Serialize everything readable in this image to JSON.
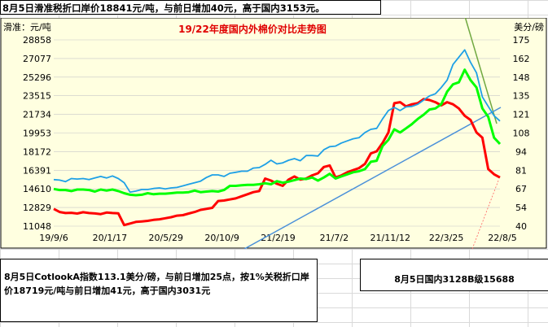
{
  "notes": {
    "top": "8月5日滑准税折口岸价18841元/吨，与前日增加40元，高于国内3153元。",
    "bottom": "8月5日CotlookA指数113.1美分/磅，与前日增加25点，按1%关税折口岸价18719元/吨与前日增加41元，高于国内3031元",
    "right": "8月5日国内3128B级15688"
  },
  "chart_data": {
    "type": "line",
    "title": "19/22年度国内外棉价对比走势图",
    "ylabel_left": "滑准：元/吨",
    "ylabel_right": "美分/磅",
    "x_ticks": [
      "19/9/6",
      "20/1/17",
      "20/5/29",
      "20/10/9",
      "21/2/19",
      "21/7/2",
      "21/11/12",
      "22/3/25",
      "22/8/5"
    ],
    "y_left_ticks": [
      11048,
      12829,
      14610,
      16391,
      18172,
      19953,
      21734,
      23515,
      25296,
      27077,
      28858
    ],
    "y_right_ticks": [
      40,
      54,
      67,
      81,
      94,
      108,
      121,
      135,
      148,
      162,
      175
    ],
    "ylim_left": [
      11048,
      28858
    ],
    "ylim_right": [
      40,
      175
    ],
    "colors": {
      "red": "#ff0000",
      "green": "#00ff00",
      "blue": "#1ea0e6",
      "trend_blue": "#4a90d9",
      "trend_green": "#70a840",
      "trend_red": "#ff6060"
    },
    "series": [
      {
        "color": "red",
        "values": [
          12700,
          12400,
          12300,
          12320,
          12250,
          12380,
          12300,
          12260,
          12200,
          12350,
          12300,
          12270,
          11150,
          11300,
          11450,
          11500,
          11550,
          11650,
          11700,
          11800,
          11900,
          12050,
          12100,
          12250,
          12400,
          12600,
          12700,
          12800,
          13450,
          13500,
          13600,
          13700,
          13900,
          14100,
          14300,
          14400,
          15600,
          15400,
          15100,
          14900,
          15500,
          15800,
          15500,
          15600,
          15900,
          16100,
          16700,
          16850,
          15700,
          15900,
          16200,
          16400,
          16600,
          17000,
          18000,
          18200,
          19000,
          20000,
          22800,
          22900,
          22500,
          22700,
          22800,
          23200,
          23100,
          22900,
          22600,
          22900,
          22700,
          22300,
          21600,
          21200,
          20000,
          19500,
          16500,
          16000,
          15700
        ]
      },
      {
        "color": "green",
        "values": [
          14600,
          14500,
          14500,
          14400,
          14550,
          14550,
          14500,
          14350,
          14550,
          14450,
          14550,
          14400,
          14200,
          14050,
          14000,
          14050,
          14200,
          14100,
          14150,
          14150,
          14200,
          14250,
          14250,
          14300,
          14450,
          14300,
          14350,
          14400,
          14350,
          14500,
          14900,
          14900,
          14950,
          15000,
          15000,
          15050,
          15150,
          15050,
          15350,
          15200,
          15300,
          15450,
          15600,
          15550,
          15700,
          15400,
          15700,
          16050,
          15600,
          15800,
          16000,
          16200,
          16300,
          16500,
          17200,
          17300,
          18700,
          19300,
          20300,
          20000,
          20400,
          20800,
          21300,
          21700,
          22200,
          22300,
          22700,
          23900,
          24600,
          24800,
          26000,
          25000,
          24300,
          22300,
          21500,
          19500,
          18900
        ]
      },
      {
        "color": "blue",
        "values": [
          15500,
          15450,
          15300,
          15600,
          15550,
          15600,
          15500,
          15650,
          15800,
          15650,
          15850,
          15600,
          15200,
          14300,
          14400,
          14550,
          14550,
          14650,
          14700,
          14600,
          14700,
          14750,
          14900,
          15050,
          15200,
          15350,
          15700,
          15950,
          15950,
          15800,
          16100,
          16200,
          16300,
          16300,
          16600,
          16650,
          16950,
          17350,
          17000,
          17100,
          17350,
          17500,
          17300,
          17800,
          17800,
          17750,
          18350,
          18650,
          18700,
          19000,
          19200,
          19400,
          19500,
          20000,
          20300,
          20400,
          21300,
          22100,
          22400,
          22100,
          22450,
          22500,
          22700,
          23100,
          23500,
          23700,
          24300,
          25000,
          26500,
          27200,
          27900,
          26700,
          25700,
          23400,
          22500,
          21600,
          21100
        ]
      }
    ]
  }
}
